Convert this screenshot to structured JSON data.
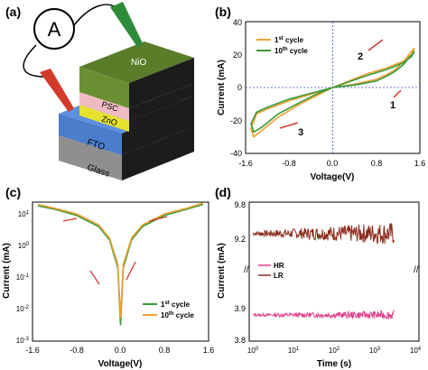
{
  "panels": {
    "a": {
      "label": "(a)",
      "meter_symbol": "A",
      "layers": [
        "NiO",
        "PSC",
        "ZnO",
        "FTO",
        "Glass"
      ],
      "colors": {
        "NiO": "#5a7d2a",
        "PSC": "#f4c9cf",
        "ZnO": "#f2ef3a",
        "FTO": "#5b8fe0",
        "Glass": "#a9a9a9",
        "side": "#222222",
        "probe_red": "#d23a2a",
        "probe_green": "#2e8b3a"
      }
    },
    "b": {
      "label": "(b)",
      "xlabel": "Voltage(V)",
      "ylabel": "Current (mA)",
      "xticks": [
        "-1.6",
        "-0.8",
        "0.0",
        "0.8",
        "1.6"
      ],
      "yticks": [
        "-40",
        "-20",
        "0",
        "20",
        "40"
      ],
      "legend": [
        {
          "base": "1",
          "sup": "st",
          "tail": " cycle",
          "color": "#f0a030"
        },
        {
          "base": "10",
          "sup": "th",
          "tail": " cycle",
          "color": "#3a9a3a"
        }
      ],
      "annotations": [
        "1",
        "2",
        "3"
      ]
    },
    "c": {
      "label": "(c)",
      "xlabel": "Voltage(V)",
      "ylabel": "Current (mA)",
      "xticks": [
        "-1.6",
        "-0.8",
        "0.0",
        "0.8",
        "1.6"
      ],
      "ytick_mant": [
        "10",
        "10",
        "10",
        "10",
        "10"
      ],
      "ytick_exp": [
        "1",
        "0",
        "-1",
        "-2",
        "-3"
      ],
      "legend": [
        {
          "base": "1",
          "sup": "st",
          "tail": " cycle",
          "color": "#3a9a3a"
        },
        {
          "base": "10",
          "sup": "th",
          "tail": " cycle",
          "color": "#f0a030"
        }
      ]
    },
    "d": {
      "label": "(d)",
      "xlabel": "Time (s)",
      "ylabel": "Current (mA)",
      "xtick_mant": [
        "10",
        "10",
        "10",
        "10",
        "10"
      ],
      "xtick_exp": [
        "0",
        "1",
        "2",
        "3",
        "4"
      ],
      "yticks": [
        "9.8",
        "9.2",
        "3.9",
        "3.8"
      ],
      "legend": [
        {
          "name": "HR",
          "color": "#e0408a"
        },
        {
          "name": "LR",
          "color": "#8b2a1a"
        }
      ]
    }
  },
  "chart_data": [
    {
      "type": "line",
      "panel": "b",
      "xlim": [
        -1.6,
        1.6
      ],
      "ylim": [
        -40,
        40
      ],
      "series": [
        {
          "name": "1st cycle",
          "color": "#f0a030",
          "x": [
            0,
            0.4,
            0.8,
            1.0,
            1.15,
            1.3,
            1.45,
            1.5,
            1.45,
            1.3,
            1.0,
            0.6,
            0.3,
            0,
            -0.4,
            -0.8,
            -1.2,
            -1.4,
            -1.5,
            -1.45,
            -1.3,
            -1.0,
            -0.6,
            -0.3,
            0
          ],
          "y": [
            0,
            2,
            5,
            8,
            11,
            16,
            22,
            24,
            20,
            16,
            12,
            8,
            4,
            0,
            -4,
            -8,
            -13,
            -16,
            -25,
            -30,
            -26,
            -18,
            -10,
            -5,
            0
          ]
        },
        {
          "name": "10th cycle",
          "color": "#3a9a3a",
          "x": [
            0,
            0.4,
            0.8,
            1.0,
            1.15,
            1.3,
            1.45,
            1.5,
            1.45,
            1.3,
            1.0,
            0.6,
            0.3,
            0,
            -0.4,
            -0.8,
            -1.2,
            -1.4,
            -1.5,
            -1.45,
            -1.3,
            -1.0,
            -0.6,
            -0.3,
            0
          ],
          "y": [
            0,
            1.5,
            4,
            7,
            10,
            14,
            20,
            22,
            19,
            15,
            11,
            7,
            3.5,
            0,
            -3.5,
            -7,
            -12,
            -15,
            -22,
            -27,
            -24,
            -16,
            -9,
            -4,
            0
          ]
        }
      ]
    },
    {
      "type": "line",
      "panel": "c",
      "xlim": [
        -1.6,
        1.6
      ],
      "ylog": true,
      "ylim": [
        0.001,
        30
      ],
      "series": [
        {
          "name": "1st cycle",
          "color": "#3a9a3a",
          "x": [
            -1.5,
            -1.2,
            -0.8,
            -0.4,
            -0.2,
            -0.05,
            0,
            0.05,
            0.2,
            0.4,
            0.8,
            1.2,
            1.5
          ],
          "y": [
            18,
            14,
            9,
            4,
            1.5,
            0.2,
            0.003,
            0.2,
            1.5,
            4,
            9,
            14,
            20
          ]
        },
        {
          "name": "10th cycle",
          "color": "#f0a030",
          "x": [
            -1.5,
            -1.2,
            -0.8,
            -0.4,
            -0.2,
            -0.05,
            0,
            0.05,
            0.2,
            0.4,
            0.8,
            1.2,
            1.5
          ],
          "y": [
            20,
            15,
            10,
            4.5,
            1.7,
            0.25,
            0.005,
            0.25,
            1.7,
            4.5,
            10,
            15,
            22
          ]
        }
      ]
    },
    {
      "type": "line",
      "panel": "d",
      "xlog": true,
      "xlim": [
        1,
        10000
      ],
      "series": [
        {
          "name": "LR",
          "color": "#8b2a1a",
          "mean": 9.3,
          "x_start": 1,
          "x_end": 3000
        },
        {
          "name": "HR",
          "color": "#e0408a",
          "mean": 3.88,
          "x_start": 1,
          "x_end": 3000
        }
      ]
    }
  ]
}
